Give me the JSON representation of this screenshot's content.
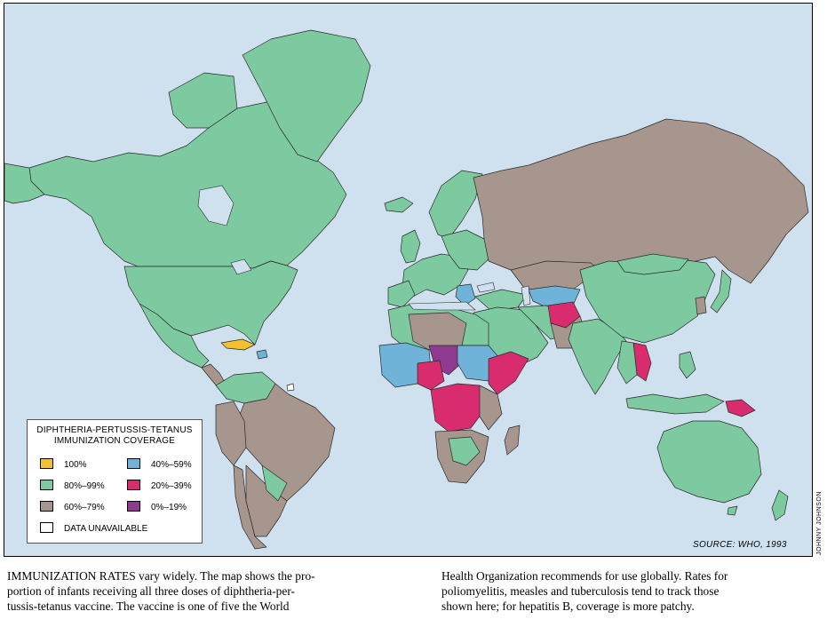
{
  "colors": {
    "ocean": "#cfe0ee",
    "c100": "#f2c12e",
    "c80_99": "#7dcaa0",
    "c60_79": "#a6968e",
    "c40_59": "#6fb3d9",
    "c20_39": "#d92c6e",
    "c0_19": "#8e3a8f",
    "unavailable": "#ffffff"
  },
  "legend": {
    "title_line1": "DIPHTHERIA-PERTUSSIS-TETANUS",
    "title_line2": "IMMUNIZATION COVERAGE",
    "items": [
      {
        "label": "100%",
        "color": "#f2c12e"
      },
      {
        "label": "40%–59%",
        "color": "#6fb3d9"
      },
      {
        "label": "80%–99%",
        "color": "#7dcaa0"
      },
      {
        "label": "20%–39%",
        "color": "#d92c6e"
      },
      {
        "label": "60%–79%",
        "color": "#a6968e"
      },
      {
        "label": "0%–19%",
        "color": "#8e3a8f"
      },
      {
        "label": "DATA UNAVAILABLE",
        "color": "#ffffff"
      }
    ]
  },
  "source": "SOURCE: WHO, 1993",
  "credit": "JOHNNY JOHNSON",
  "caption": {
    "left_lines": [
      "IMMUNIZATION RATES vary widely. The map shows the pro-",
      "portion of infants receiving all three doses of diphtheria-per-",
      "tussis-tetanus vaccine. The vaccine is one of five the World"
    ],
    "right_lines": [
      "Health Organization recommends for use globally. Rates for",
      "poliomyelitis, measles and tuberculosis tend to track those",
      "shown here; for hepatitis B, coverage is more patchy."
    ]
  }
}
